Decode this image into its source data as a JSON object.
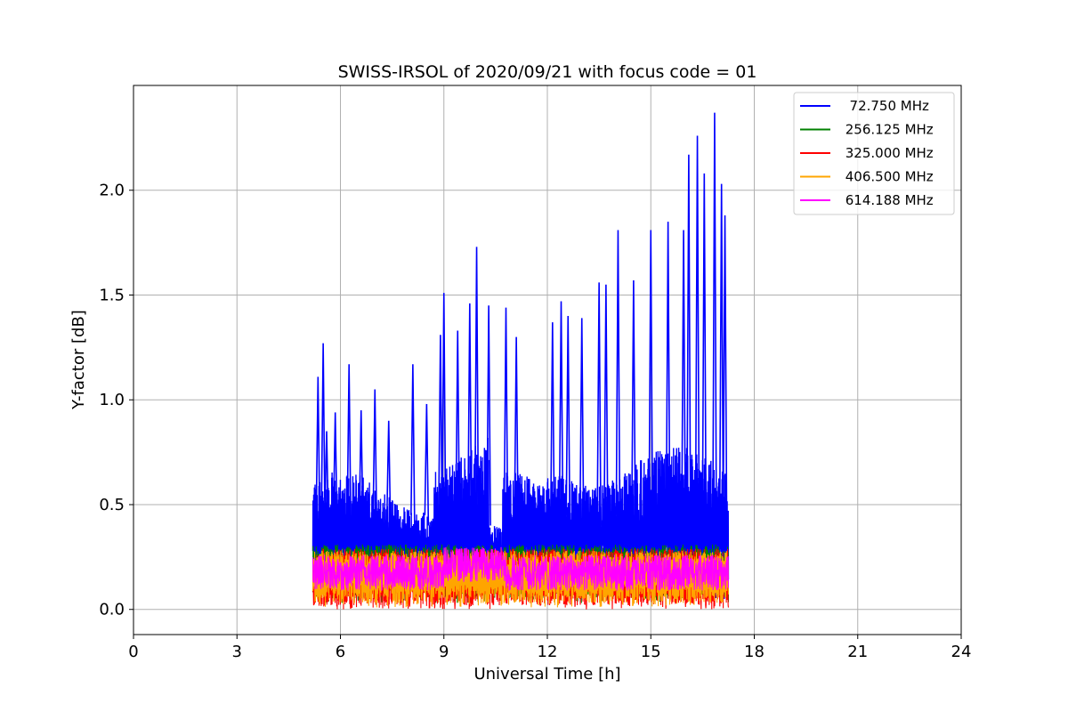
{
  "chart_data": {
    "type": "line",
    "title": "SWISS-IRSOL of 2020/09/21 with focus code = 01",
    "xlabel": "Universal Time [h]",
    "ylabel": "Y-factor [dB]",
    "xlim": [
      0,
      24
    ],
    "ylim": [
      -0.12,
      2.5
    ],
    "xticks": [
      0,
      3,
      6,
      9,
      12,
      15,
      18,
      21,
      24
    ],
    "xtick_labels": [
      "0",
      "3",
      "6",
      "9",
      "12",
      "15",
      "18",
      "21",
      "24"
    ],
    "yticks": [
      0.0,
      0.5,
      1.0,
      1.5,
      2.0
    ],
    "ytick_labels": [
      "0.0",
      "0.5",
      "1.0",
      "1.5",
      "2.0"
    ],
    "grid": true,
    "legend_position": "top-right",
    "series": [
      {
        "name": "  72.750 MHz",
        "color": "#0000ff",
        "x_range": [
          5.2,
          17.25
        ],
        "baseline_range": [
          0.2,
          0.55
        ],
        "peaks": [
          {
            "x": 5.35,
            "y": 1.11
          },
          {
            "x": 5.5,
            "y": 1.27
          },
          {
            "x": 5.6,
            "y": 0.85
          },
          {
            "x": 5.85,
            "y": 0.94
          },
          {
            "x": 6.25,
            "y": 1.17
          },
          {
            "x": 6.6,
            "y": 0.95
          },
          {
            "x": 7.0,
            "y": 1.05
          },
          {
            "x": 7.4,
            "y": 0.9
          },
          {
            "x": 8.1,
            "y": 1.17
          },
          {
            "x": 8.5,
            "y": 0.98
          },
          {
            "x": 8.9,
            "y": 1.31
          },
          {
            "x": 9.0,
            "y": 1.51
          },
          {
            "x": 9.4,
            "y": 1.33
          },
          {
            "x": 9.75,
            "y": 1.46
          },
          {
            "x": 9.95,
            "y": 1.73
          },
          {
            "x": 10.3,
            "y": 1.45
          },
          {
            "x": 10.8,
            "y": 1.44
          },
          {
            "x": 11.1,
            "y": 1.3
          },
          {
            "x": 12.15,
            "y": 1.37
          },
          {
            "x": 12.4,
            "y": 1.47
          },
          {
            "x": 12.6,
            "y": 1.4
          },
          {
            "x": 13.0,
            "y": 1.39
          },
          {
            "x": 13.5,
            "y": 1.56
          },
          {
            "x": 13.7,
            "y": 1.55
          },
          {
            "x": 14.05,
            "y": 1.81
          },
          {
            "x": 14.5,
            "y": 1.57
          },
          {
            "x": 15.0,
            "y": 1.81
          },
          {
            "x": 15.5,
            "y": 1.85
          },
          {
            "x": 15.95,
            "y": 1.81
          },
          {
            "x": 16.1,
            "y": 2.17
          },
          {
            "x": 16.35,
            "y": 2.26
          },
          {
            "x": 16.55,
            "y": 2.08
          },
          {
            "x": 16.85,
            "y": 2.37
          },
          {
            "x": 17.05,
            "y": 2.03
          },
          {
            "x": 17.15,
            "y": 1.88
          }
        ]
      },
      {
        "name": " 256.125 MHz",
        "color": "#008000",
        "x_range": [
          5.2,
          17.25
        ],
        "baseline_range": [
          0.05,
          0.31
        ]
      },
      {
        "name": " 325.000 MHz",
        "color": "#ff0000",
        "x_range": [
          5.2,
          17.25
        ],
        "baseline_range": [
          0.02,
          0.29
        ]
      },
      {
        "name": " 406.500 MHz",
        "color": "#ffa500",
        "x_range": [
          5.2,
          17.25
        ],
        "baseline_range": [
          0.03,
          0.28
        ]
      },
      {
        "name": " 614.188 MHz",
        "color": "#ff00ff",
        "x_range": [
          5.2,
          17.25
        ],
        "baseline_range": [
          0.07,
          0.27
        ]
      }
    ]
  }
}
